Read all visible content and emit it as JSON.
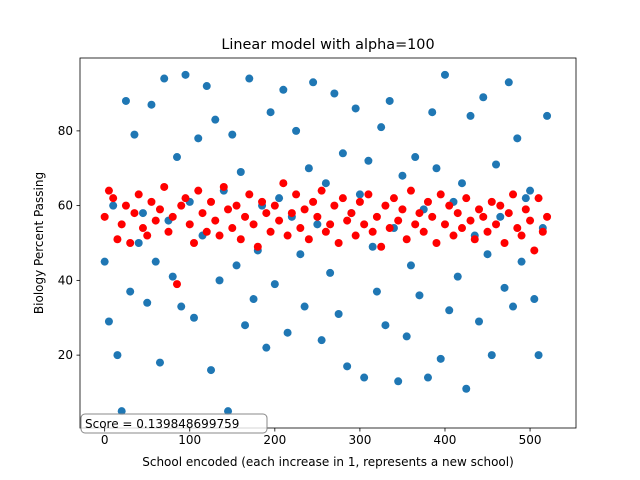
{
  "chart_data": {
    "type": "scatter",
    "title": "Linear model with alpha=100",
    "x_label": "School encoded (each increase in 1, represents a new school)",
    "y_label": "Biology Percent Passing",
    "annotation": "Score = 0.139848699759",
    "x": [
      0,
      5,
      10,
      15,
      20,
      25,
      30,
      35,
      40,
      45,
      50,
      55,
      60,
      65,
      70,
      75,
      80,
      85,
      90,
      95,
      100,
      105,
      110,
      115,
      120,
      125,
      130,
      135,
      140,
      145,
      150,
      155,
      160,
      165,
      170,
      175,
      180,
      185,
      190,
      195,
      200,
      205,
      210,
      215,
      220,
      225,
      230,
      235,
      240,
      245,
      250,
      255,
      260,
      265,
      270,
      275,
      280,
      285,
      290,
      295,
      300,
      305,
      310,
      315,
      320,
      325,
      330,
      335,
      340,
      345,
      350,
      355,
      360,
      365,
      370,
      375,
      380,
      385,
      390,
      395,
      400,
      405,
      410,
      415,
      420,
      425,
      430,
      435,
      440,
      445,
      450,
      455,
      460,
      465,
      470,
      475,
      480,
      485,
      490,
      495,
      500,
      505,
      510,
      515,
      520
    ],
    "series": [
      {
        "color": "#1f77b4",
        "values": [
          45,
          29,
          60,
          20,
          5,
          88,
          37,
          79,
          50,
          58,
          34,
          87,
          45,
          18,
          94,
          56,
          41,
          73,
          33,
          95,
          61,
          30,
          78,
          52,
          92,
          16,
          83,
          40,
          64,
          5,
          79,
          44,
          69,
          28,
          94,
          35,
          48,
          60,
          22,
          85,
          39,
          62,
          91,
          26,
          57,
          80,
          47,
          33,
          70,
          93,
          55,
          24,
          66,
          42,
          90,
          31,
          74,
          17,
          58,
          86,
          63,
          14,
          72,
          49,
          37,
          81,
          28,
          88,
          54,
          13,
          68,
          25,
          44,
          73,
          36,
          59,
          14,
          85,
          70,
          19,
          95,
          32,
          61,
          41,
          66,
          11,
          84,
          52,
          29,
          89,
          47,
          20,
          71,
          57,
          38,
          93,
          33,
          78,
          45,
          62,
          64,
          35,
          20,
          54,
          84
        ]
      },
      {
        "color": "#ff0000",
        "values": [
          57,
          64,
          62,
          51,
          55,
          60,
          50,
          58,
          63,
          54,
          52,
          61,
          56,
          59,
          65,
          53,
          57,
          39,
          60,
          62,
          55,
          50,
          64,
          58,
          53,
          61,
          56,
          52,
          65,
          59,
          54,
          60,
          51,
          57,
          63,
          55,
          49,
          61,
          58,
          53,
          60,
          56,
          66,
          52,
          58,
          63,
          54,
          59,
          51,
          61,
          57,
          64,
          53,
          55,
          60,
          50,
          62,
          56,
          58,
          52,
          61,
          55,
          63,
          53,
          57,
          49,
          60,
          54,
          62,
          56,
          59,
          51,
          64,
          55,
          58,
          53,
          61,
          57,
          50,
          63,
          55,
          60,
          52,
          58,
          54,
          62,
          56,
          51,
          59,
          57,
          53,
          61,
          55,
          60,
          50,
          58,
          63,
          54,
          52,
          59,
          56,
          48,
          62,
          53,
          57
        ]
      }
    ],
    "xlim": [
      -29,
      554
    ],
    "xticks": [
      0,
      100,
      200,
      300,
      400,
      500
    ],
    "ylim": [
      0.5,
      99.5
    ],
    "yticks": [
      20,
      40,
      60,
      80
    ]
  }
}
